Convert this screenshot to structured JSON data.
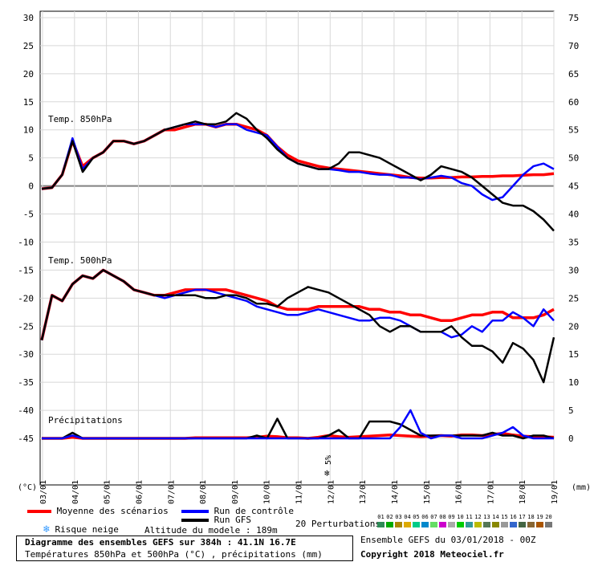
{
  "chart_data": {
    "type": "line",
    "title": "Diagramme des ensembles GEFS sur 384h : 41.1N 16.7E",
    "subtitle": "Températures 850hPa et 500hPa (°C) , précipitations (mm)",
    "left_unit": "(°C)",
    "right_unit": "(mm)",
    "y_left_ticks": [
      30,
      25,
      20,
      15,
      10,
      5,
      0,
      -5,
      -10,
      -15,
      -20,
      -25,
      -30,
      -35,
      -40,
      -45
    ],
    "y_right_ticks": [
      75,
      70,
      65,
      60,
      55,
      50,
      45,
      40,
      35,
      30,
      25,
      20,
      15,
      10,
      5,
      0
    ],
    "ylim": [
      -45,
      30
    ],
    "x_ticks": [
      "03/01",
      "04/01",
      "05/01",
      "06/01",
      "07/01",
      "08/01",
      "09/01",
      "10/01",
      "11/01",
      "12/01",
      "13/01",
      "14/01",
      "15/01",
      "16/01",
      "17/01",
      "18/01",
      "19/01"
    ],
    "annotations": {
      "t850": "Temp. 850hPa",
      "t500": "Temp. 500hPa",
      "precip": "Précipitations",
      "snow_pct": "5%"
    },
    "series": [
      {
        "name": "Moyenne des scénarios",
        "group": "t850",
        "color": "#ff0000",
        "values": [
          -0.5,
          -0.3,
          2,
          8,
          3.5,
          5,
          6,
          8,
          8,
          7.5,
          8,
          9,
          10,
          10,
          10.5,
          11,
          11,
          10.5,
          11,
          11,
          10.5,
          10,
          9,
          7,
          5.5,
          4.5,
          4,
          3.5,
          3.2,
          3,
          2.8,
          2.6,
          2.4,
          2.2,
          2,
          1.8,
          1.5,
          1.4,
          1.4,
          1.5,
          1.5,
          1.6,
          1.6,
          1.7,
          1.7,
          1.8,
          1.8,
          1.9,
          2,
          2,
          2.2
        ]
      },
      {
        "name": "Run de contrôle",
        "group": "t850",
        "color": "#0000ff",
        "values": [
          -0.5,
          -0.3,
          2,
          8.5,
          3,
          5,
          6,
          8,
          8,
          7.5,
          8,
          9,
          10,
          10.5,
          11,
          11,
          11,
          10.5,
          11,
          11,
          10,
          9.5,
          9,
          7,
          5,
          4,
          3.5,
          3,
          3,
          2.8,
          2.5,
          2.5,
          2.2,
          2,
          2,
          1.5,
          1.5,
          1.2,
          1.5,
          1.8,
          1.5,
          0.5,
          0,
          -1.5,
          -2.5,
          -2,
          0,
          2,
          3.5,
          4,
          3
        ]
      },
      {
        "name": "Run GFS",
        "group": "t850",
        "color": "#000000",
        "values": [
          -0.5,
          -0.3,
          2,
          8,
          2.5,
          5,
          6,
          8,
          8,
          7.5,
          8,
          9,
          10,
          10.5,
          11,
          11.5,
          11,
          11,
          11.5,
          13,
          12,
          10,
          8.5,
          6.5,
          5,
          4,
          3.5,
          3,
          3,
          4,
          6,
          6,
          5.5,
          5,
          4,
          3,
          2,
          1,
          2,
          3.5,
          3,
          2.5,
          1.5,
          0,
          -1.5,
          -3,
          -3.5,
          -3.5,
          -4.5,
          -6,
          -8
        ]
      },
      {
        "name": "Moyenne des scénarios",
        "group": "t500",
        "color": "#ff0000",
        "values": [
          -27.5,
          -19.5,
          -20.5,
          -17.5,
          -16,
          -16.5,
          -15,
          -16,
          -17,
          -18.5,
          -19,
          -19.5,
          -19.5,
          -19,
          -18.5,
          -18.5,
          -18.5,
          -18.5,
          -18.5,
          -19,
          -19.5,
          -20,
          -20.5,
          -21.5,
          -22,
          -22,
          -22,
          -21.5,
          -21.5,
          -21.5,
          -21.5,
          -21.5,
          -22,
          -22,
          -22.5,
          -22.5,
          -23,
          -23,
          -23.5,
          -24,
          -24,
          -23.5,
          -23,
          -23,
          -22.5,
          -22.5,
          -23.5,
          -23.5,
          -23.5,
          -23,
          -22
        ]
      },
      {
        "name": "Run de contrôle",
        "group": "t500",
        "color": "#0000ff",
        "values": [
          -27.5,
          -19.5,
          -20.5,
          -17.5,
          -16,
          -16.5,
          -15,
          -16,
          -17,
          -18.5,
          -19,
          -19.5,
          -20,
          -19.5,
          -19,
          -18.5,
          -18.5,
          -19,
          -19.5,
          -20,
          -20.5,
          -21.5,
          -22,
          -22.5,
          -23,
          -23,
          -22.5,
          -22,
          -22.5,
          -23,
          -23.5,
          -24,
          -24,
          -23.5,
          -23.5,
          -24,
          -25,
          -26,
          -26,
          -26,
          -27,
          -26.5,
          -25,
          -26,
          -24,
          -24,
          -22.5,
          -23.5,
          -25,
          -22,
          -24
        ]
      },
      {
        "name": "Run GFS",
        "group": "t500",
        "color": "#000000",
        "values": [
          -27.5,
          -19.5,
          -20.5,
          -17.5,
          -16,
          -16.5,
          -15,
          -16,
          -17,
          -18.5,
          -19,
          -19.5,
          -19.5,
          -19.5,
          -19.5,
          -19.5,
          -20,
          -20,
          -19.5,
          -19.5,
          -20,
          -21,
          -21,
          -21.5,
          -20,
          -19,
          -18,
          -18.5,
          -19,
          -20,
          -21,
          -22,
          -23,
          -25,
          -26,
          -25,
          -25,
          -26,
          -26,
          -26,
          -25,
          -27,
          -28.5,
          -28.5,
          -29.5,
          -31.5,
          -28,
          -29,
          -31,
          -35,
          -27
        ]
      },
      {
        "name": "Moyenne des scénarios",
        "group": "precip",
        "color": "#ff0000",
        "values": [
          0,
          0,
          0,
          0.2,
          0,
          0,
          0,
          0,
          0,
          0,
          0,
          0,
          0,
          0,
          0,
          0.1,
          0.1,
          0.1,
          0.1,
          0.1,
          0.1,
          0.2,
          0.4,
          0.3,
          0.1,
          0.1,
          0,
          0.2,
          0.5,
          0.3,
          0.2,
          0.3,
          0.4,
          0.5,
          0.6,
          0.5,
          0.4,
          0.3,
          0.4,
          0.5,
          0.4,
          0.6,
          0.6,
          0.5,
          0.7,
          0.9,
          0.6,
          0.4,
          0.3,
          0.3,
          0.2
        ]
      },
      {
        "name": "Run GFS",
        "group": "precip",
        "color": "#000000",
        "values": [
          0,
          0,
          0,
          1,
          0,
          0,
          0,
          0,
          0,
          0,
          0,
          0,
          0,
          0,
          0,
          0,
          0,
          0,
          0,
          0,
          0,
          0.5,
          0,
          3.5,
          0,
          0,
          0,
          0,
          0.5,
          1.5,
          0,
          0,
          3,
          3,
          3,
          2.5,
          1.5,
          0.5,
          0.5,
          0.5,
          0.5,
          0.5,
          0.5,
          0.5,
          1,
          0.5,
          0.5,
          0,
          0.5,
          0.5,
          0
        ]
      },
      {
        "name": "Run de contrôle",
        "group": "precip",
        "color": "#0000ff",
        "values": [
          0,
          0,
          0,
          0.5,
          0,
          0,
          0,
          0,
          0,
          0,
          0,
          0,
          0,
          0,
          0,
          0,
          0,
          0,
          0,
          0,
          0,
          0,
          0,
          0,
          0,
          0,
          0,
          0,
          0,
          0,
          0,
          0,
          0,
          0,
          0,
          2,
          5,
          1,
          0,
          0.5,
          0.5,
          0,
          0,
          0,
          0.5,
          1,
          2,
          0.5,
          0,
          0,
          0
        ]
      }
    ]
  },
  "legend": {
    "mean": "Moyenne des scénarios",
    "control": "Run de contrôle",
    "gfs": "Run GFS",
    "snow_risk": "Risque neige",
    "altitude": "Altitude du modele : 189m",
    "perturbations": "20 Perturbations",
    "perturbation_numbers": [
      "01",
      "02",
      "03",
      "04",
      "05",
      "06",
      "07",
      "08",
      "09",
      "10",
      "11",
      "12",
      "13",
      "14",
      "15",
      "16",
      "17",
      "18",
      "19",
      "20"
    ],
    "perturbation_colors": [
      "#2e8b57",
      "#00aa00",
      "#aa8800",
      "#ddaa00",
      "#00cc88",
      "#0088cc",
      "#66dd66",
      "#cc00cc",
      "#aaaaaa",
      "#00cc00",
      "#339999",
      "#bbbb00",
      "#557755",
      "#888800",
      "#999999",
      "#3366cc",
      "#446644",
      "#886633",
      "#aa5500",
      "#777777"
    ]
  },
  "info": {
    "ensemble": "Ensemble GEFS du 03/01/2018 - 00Z",
    "copyright": "Copyright 2018 Meteociel.fr"
  },
  "colors": {
    "zero_line": "#808080",
    "grid": "#d8d8d8",
    "frame": "#000000"
  }
}
